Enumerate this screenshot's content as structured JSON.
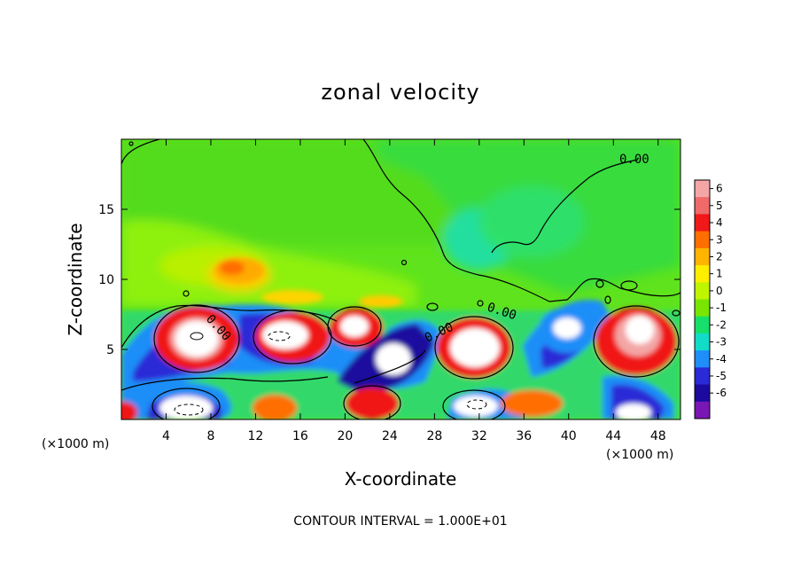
{
  "chart_data": {
    "type": "heatmap",
    "title": "zonal velocity",
    "xlabel": "X-coordinate",
    "ylabel": "Z-coordinate",
    "x_unit": "(×1000 m)",
    "x_unit_right": "(×1000 m)",
    "xlim": [
      0,
      50
    ],
    "ylim": [
      0,
      20
    ],
    "x_ticks": [
      4,
      8,
      12,
      16,
      20,
      24,
      28,
      32,
      36,
      40,
      44,
      48
    ],
    "y_ticks": [
      5,
      10,
      15
    ],
    "colorbar": {
      "ticks": [
        6,
        5,
        4,
        3,
        2,
        1,
        0,
        -1,
        -2,
        -3,
        -4,
        -5,
        -6
      ],
      "colors": [
        "#f4a6a6",
        "#f06a6a",
        "#f01818",
        "#ff6e00",
        "#ffb400",
        "#ffee00",
        "#bff500",
        "#78e600",
        "#16e06a",
        "#12dcc8",
        "#1f8ef8",
        "#2a2ad6",
        "#1c0a9e",
        "#7a16b4"
      ]
    },
    "contour_label": "0.00",
    "contour_note": "CONTOUR INTERVAL = 1.000E+01"
  }
}
